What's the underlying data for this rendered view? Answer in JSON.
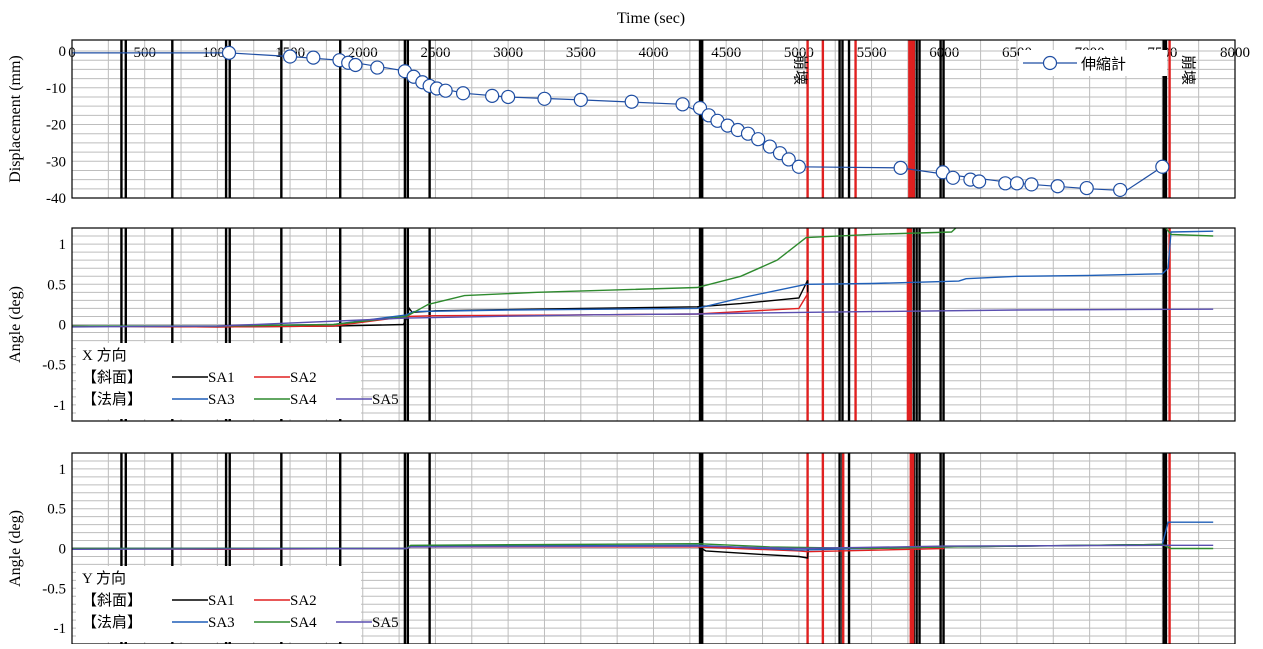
{
  "chart_data": [
    {
      "type": "scatter",
      "xlabel": "Time (sec)",
      "ylabel": "Displacement (mm)",
      "xlim": [
        0,
        8000
      ],
      "ylim": [
        -40,
        3
      ],
      "x_ticks": [
        "0",
        "500",
        "1000",
        "1500",
        "2000",
        "2500",
        "3000",
        "3500",
        "4000",
        "4500",
        "5000",
        "5500",
        "6000",
        "6500",
        "7000",
        "7500",
        "8000"
      ],
      "y_ticks": [
        {
          "v": 0,
          "t": "0"
        },
        {
          "v": -10,
          "t": "-10"
        },
        {
          "v": -20,
          "t": "-20"
        },
        {
          "v": -30,
          "t": "-30"
        },
        {
          "v": -40,
          "t": "-40"
        }
      ],
      "grid": true,
      "legend_position": "top-right",
      "annotations": [
        "崩壊",
        "崩壊"
      ],
      "series": [
        {
          "name": "伸縮計",
          "color": "#1f4ea3",
          "line_points": [
            [
              0,
              -0.5
            ],
            [
              1080,
              -0.5
            ],
            [
              1500,
              -1.5
            ],
            [
              1840,
              -2.5
            ],
            [
              2300,
              -5.5
            ],
            [
              2450,
              -9.5
            ],
            [
              2700,
              -11.5
            ],
            [
              3000,
              -12.5
            ],
            [
              3500,
              -13.3
            ],
            [
              4200,
              -14.5
            ],
            [
              4500,
              -20
            ],
            [
              4850,
              -27.5
            ],
            [
              5000,
              -31.5
            ],
            [
              5700,
              -31.8
            ],
            [
              6000,
              -33.5
            ],
            [
              6500,
              -36
            ],
            [
              7000,
              -37.5
            ],
            [
              7250,
              -38
            ],
            [
              7500,
              -31.5
            ]
          ],
          "markers": [
            [
              1080,
              -0.5
            ],
            [
              1500,
              -1.5
            ],
            [
              1660,
              -1.8
            ],
            [
              1840,
              -2.5
            ],
            [
              1900,
              -3.2
            ],
            [
              1950,
              -3.8
            ],
            [
              2100,
              -4.5
            ],
            [
              2290,
              -5.5
            ],
            [
              2350,
              -7
            ],
            [
              2410,
              -8.5
            ],
            [
              2460,
              -9.5
            ],
            [
              2510,
              -10.2
            ],
            [
              2570,
              -10.8
            ],
            [
              2690,
              -11.5
            ],
            [
              2890,
              -12.2
            ],
            [
              3000,
              -12.5
            ],
            [
              3250,
              -13
            ],
            [
              3500,
              -13.3
            ],
            [
              3850,
              -13.8
            ],
            [
              4200,
              -14.5
            ],
            [
              4320,
              -15.5
            ],
            [
              4380,
              -17.5
            ],
            [
              4440,
              -19
            ],
            [
              4510,
              -20.3
            ],
            [
              4580,
              -21.5
            ],
            [
              4650,
              -22.5
            ],
            [
              4720,
              -24
            ],
            [
              4800,
              -26
            ],
            [
              4870,
              -27.8
            ],
            [
              4930,
              -29.5
            ],
            [
              5000,
              -31.5
            ],
            [
              5700,
              -31.8
            ],
            [
              5990,
              -33
            ],
            [
              6060,
              -34.5
            ],
            [
              6180,
              -35
            ],
            [
              6240,
              -35.5
            ],
            [
              6420,
              -36
            ],
            [
              6500,
              -36
            ],
            [
              6600,
              -36.3
            ],
            [
              6780,
              -36.8
            ],
            [
              6980,
              -37.3
            ],
            [
              7210,
              -37.8
            ],
            [
              7500,
              -31.5
            ]
          ]
        }
      ]
    },
    {
      "type": "line",
      "ylabel": "Angle (deg)",
      "xlim": [
        0,
        8000
      ],
      "ylim": [
        -1.2,
        1.2
      ],
      "y_ticks": [
        {
          "v": 1,
          "t": "1"
        },
        {
          "v": 0.5,
          "t": "0.5"
        },
        {
          "v": 0,
          "t": "0"
        },
        {
          "v": -0.5,
          "t": "-0.5"
        },
        {
          "v": -1,
          "t": "-1"
        }
      ],
      "grid": true,
      "legend_position": "bottom-left",
      "legend_title": "X 方向",
      "group_labels": [
        "【斜面】",
        "【法肩】"
      ],
      "series": [
        {
          "name": "SA1",
          "color": "#000000",
          "points": [
            [
              0,
              -0.02
            ],
            [
              1000,
              -0.03
            ],
            [
              1800,
              -0.02
            ],
            [
              2280,
              0.0
            ],
            [
              2300,
              0.08
            ],
            [
              2320,
              0.2
            ],
            [
              2340,
              0.15
            ],
            [
              2500,
              0.17
            ],
            [
              3500,
              0.2
            ],
            [
              4300,
              0.22
            ],
            [
              4600,
              0.26
            ],
            [
              5000,
              0.33
            ],
            [
              5060,
              0.55
            ],
            [
              5065,
              0.05
            ]
          ]
        },
        {
          "name": "SA2",
          "color": "#e02020",
          "points": [
            [
              0,
              -0.02
            ],
            [
              1000,
              -0.03
            ],
            [
              1800,
              -0.02
            ],
            [
              2300,
              0.1
            ],
            [
              2500,
              0.11
            ],
            [
              3500,
              0.12
            ],
            [
              4300,
              0.13
            ],
            [
              4600,
              0.16
            ],
            [
              5000,
              0.2
            ],
            [
              5060,
              0.38
            ],
            [
              5065,
              0.05
            ]
          ]
        },
        {
          "name": "SA3",
          "color": "#1f5fb8",
          "points": [
            [
              0,
              -0.02
            ],
            [
              1000,
              -0.02
            ],
            [
              1800,
              0.0
            ],
            [
              2300,
              0.12
            ],
            [
              2350,
              0.16
            ],
            [
              3000,
              0.18
            ],
            [
              4300,
              0.2
            ],
            [
              4600,
              0.33
            ],
            [
              5050,
              0.5
            ],
            [
              5500,
              0.51
            ],
            [
              6100,
              0.54
            ],
            [
              6150,
              0.57
            ],
            [
              6500,
              0.6
            ],
            [
              7000,
              0.61
            ],
            [
              7500,
              0.63
            ],
            [
              7540,
              0.7
            ],
            [
              7560,
              1.15
            ],
            [
              7850,
              1.16
            ]
          ]
        },
        {
          "name": "SA4",
          "color": "#2e8a2e",
          "points": [
            [
              0,
              -0.02
            ],
            [
              1000,
              -0.02
            ],
            [
              1800,
              0.0
            ],
            [
              2300,
              0.1
            ],
            [
              2450,
              0.25
            ],
            [
              2700,
              0.36
            ],
            [
              3200,
              0.4
            ],
            [
              4300,
              0.46
            ],
            [
              4600,
              0.6
            ],
            [
              4850,
              0.8
            ],
            [
              5050,
              1.08
            ],
            [
              5500,
              1.12
            ],
            [
              6050,
              1.15
            ],
            [
              6080,
              1.2
            ],
            [
              6090,
              1.25
            ],
            [
              7500,
              1.25
            ],
            [
              7560,
              1.12
            ],
            [
              7850,
              1.1
            ]
          ]
        },
        {
          "name": "SA5",
          "color": "#5a4fb0",
          "points": [
            [
              0,
              -0.03
            ],
            [
              1000,
              -0.02
            ],
            [
              2300,
              0.08
            ],
            [
              3500,
              0.12
            ],
            [
              4300,
              0.13
            ],
            [
              5000,
              0.15
            ],
            [
              5500,
              0.16
            ],
            [
              6500,
              0.18
            ],
            [
              7850,
              0.19
            ]
          ]
        }
      ]
    },
    {
      "type": "line",
      "ylabel": "Angle (deg)",
      "xlim": [
        0,
        8000
      ],
      "ylim": [
        -1.2,
        1.2
      ],
      "y_ticks": [
        {
          "v": 1,
          "t": "1"
        },
        {
          "v": 0.5,
          "t": "0.5"
        },
        {
          "v": 0,
          "t": "0"
        },
        {
          "v": -0.5,
          "t": "-0.5"
        },
        {
          "v": -1,
          "t": "-1"
        }
      ],
      "grid": true,
      "legend_position": "bottom-left",
      "legend_title": "Y 方向",
      "group_labels": [
        "【斜面】",
        "【法肩】"
      ],
      "series": [
        {
          "name": "SA1",
          "color": "#000000",
          "points": [
            [
              0,
              0.0
            ],
            [
              2300,
              0.0
            ],
            [
              2330,
              0.03
            ],
            [
              4300,
              0.03
            ],
            [
              4360,
              -0.03
            ],
            [
              4700,
              -0.07
            ],
            [
              5000,
              -0.1
            ],
            [
              5060,
              -0.12
            ],
            [
              5065,
              0.0
            ],
            [
              7500,
              0.05
            ]
          ]
        },
        {
          "name": "SA2",
          "color": "#e02020",
          "points": [
            [
              0,
              0.0
            ],
            [
              1000,
              -0.01
            ],
            [
              2300,
              0.0
            ],
            [
              2330,
              0.02
            ],
            [
              4300,
              0.02
            ],
            [
              5000,
              -0.03
            ],
            [
              5060,
              -0.04
            ],
            [
              6000,
              0.0
            ]
          ]
        },
        {
          "name": "SA3",
          "color": "#1f5fb8",
          "points": [
            [
              0,
              0.0
            ],
            [
              2300,
              0.0
            ],
            [
              2330,
              0.03
            ],
            [
              4300,
              0.04
            ],
            [
              5000,
              -0.02
            ],
            [
              6000,
              0.02
            ],
            [
              7000,
              0.04
            ],
            [
              7500,
              0.05
            ],
            [
              7540,
              0.33
            ],
            [
              7850,
              0.33
            ]
          ]
        },
        {
          "name": "SA4",
          "color": "#2e8a2e",
          "points": [
            [
              0,
              0.0
            ],
            [
              2300,
              0.0
            ],
            [
              2330,
              0.04
            ],
            [
              4300,
              0.06
            ],
            [
              4800,
              0.02
            ],
            [
              5500,
              0.0
            ],
            [
              6000,
              0.02
            ],
            [
              7500,
              0.05
            ],
            [
              7560,
              0.0
            ],
            [
              7850,
              0.0
            ]
          ]
        },
        {
          "name": "SA5",
          "color": "#5a4fb0",
          "points": [
            [
              0,
              -0.01
            ],
            [
              2300,
              0.0
            ],
            [
              2330,
              0.02
            ],
            [
              4300,
              0.03
            ],
            [
              5000,
              0.0
            ],
            [
              6000,
              0.03
            ],
            [
              7500,
              0.04
            ],
            [
              7850,
              0.04
            ]
          ]
        }
      ]
    }
  ],
  "event_lines": {
    "black": [
      340,
      370,
      690,
      1060,
      1085,
      1440,
      1845,
      2290,
      2310,
      2460,
      4320,
      4335,
      5280,
      5300,
      5345,
      5790,
      5810,
      5830,
      5975,
      5995,
      7510,
      7525
    ],
    "red": [
      5060,
      5165,
      5390,
      5760,
      5775,
      5790,
      7550
    ],
    "red_middle": [
      5060,
      5165,
      5390,
      5750,
      5760,
      5770,
      7550
    ],
    "red_bottom": [
      5060,
      5165,
      5305,
      5770,
      5785,
      7550
    ]
  }
}
